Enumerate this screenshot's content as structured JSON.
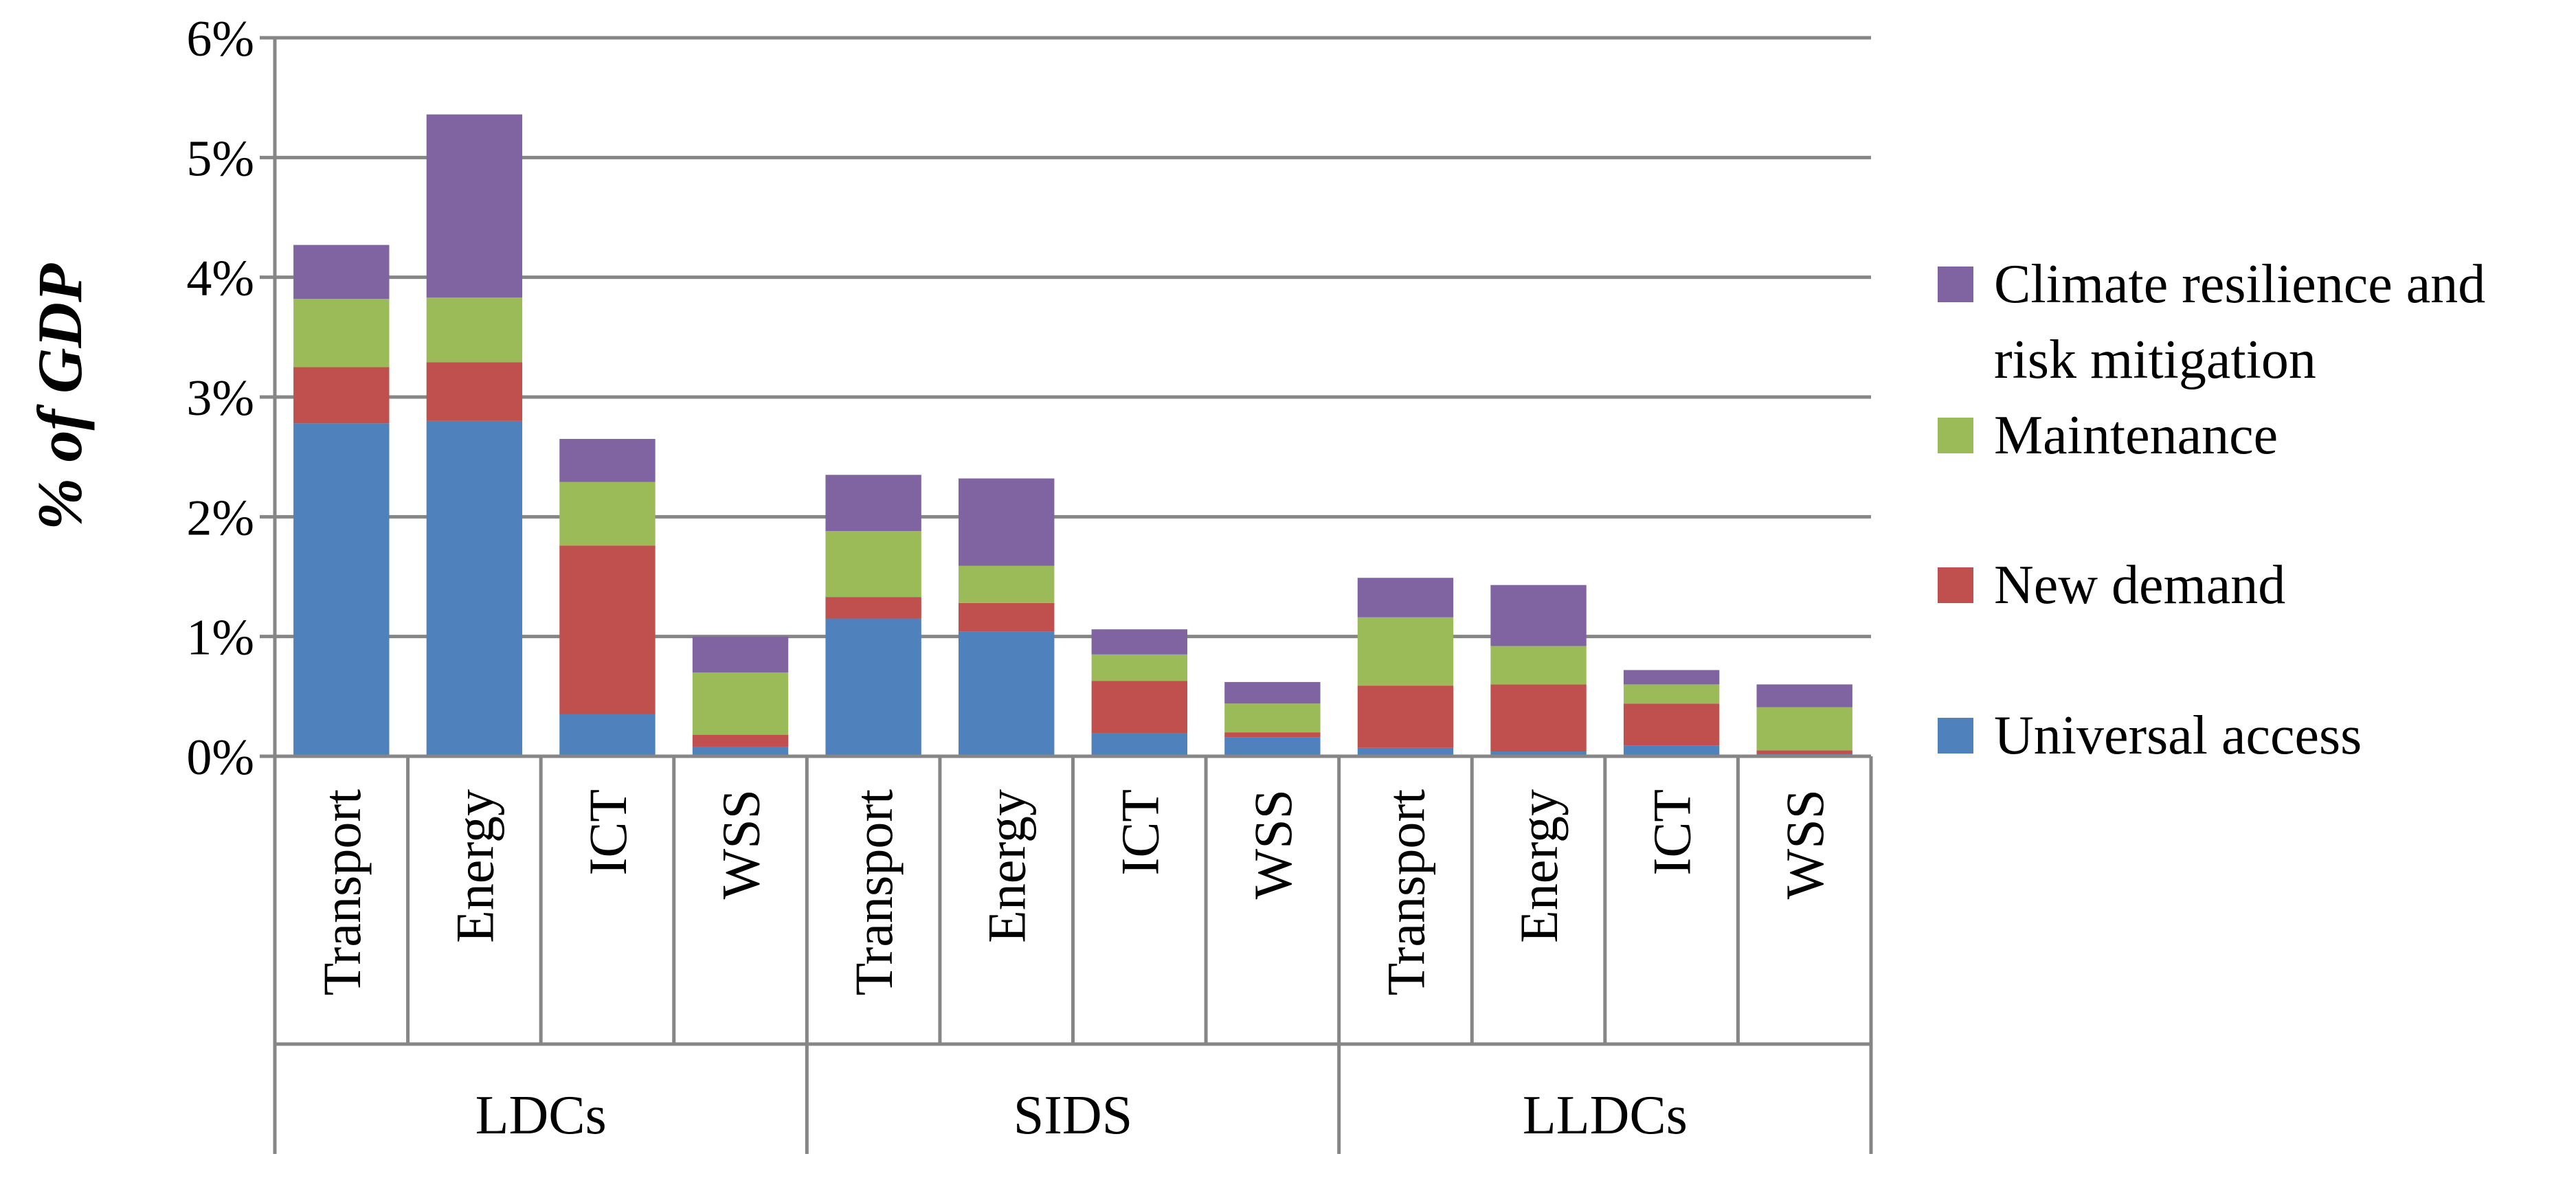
{
  "chart_data": {
    "type": "bar",
    "stacked": true,
    "title": "",
    "xlabel": "",
    "ylabel": "% of GDP",
    "ylim": [
      0,
      6
    ],
    "y_ticks": [
      "0%",
      "1%",
      "2%",
      "3%",
      "4%",
      "5%",
      "6%"
    ],
    "grid": true,
    "legend_position": "right",
    "groups": [
      {
        "label": "LDCs",
        "categories": [
          "Transport",
          "Energy",
          "ICT",
          "WSS"
        ]
      },
      {
        "label": "SIDS",
        "categories": [
          "Transport",
          "Energy",
          "ICT",
          "WSS"
        ]
      },
      {
        "label": "LLDCs",
        "categories": [
          "Transport",
          "Energy",
          "ICT",
          "WSS"
        ]
      }
    ],
    "series": [
      {
        "name": "Universal access",
        "color": "#4F81BD",
        "values": [
          2.78,
          2.8,
          0.35,
          0.08,
          1.15,
          1.04,
          0.19,
          0.16,
          0.07,
          0.04,
          0.09,
          0.02
        ]
      },
      {
        "name": "New demand",
        "color": "#C0504D",
        "values": [
          0.47,
          0.49,
          1.41,
          0.1,
          0.18,
          0.24,
          0.44,
          0.04,
          0.52,
          0.56,
          0.35,
          0.03
        ]
      },
      {
        "name": "Maintenance",
        "color": "#9BBB59",
        "values": [
          0.57,
          0.54,
          0.53,
          0.52,
          0.55,
          0.31,
          0.22,
          0.24,
          0.57,
          0.32,
          0.16,
          0.36
        ]
      },
      {
        "name": "Climate resilience and risk mitigation",
        "color": "#8064A2",
        "values": [
          0.45,
          1.53,
          0.36,
          0.3,
          0.47,
          0.73,
          0.21,
          0.18,
          0.33,
          0.51,
          0.12,
          0.19
        ]
      }
    ]
  }
}
